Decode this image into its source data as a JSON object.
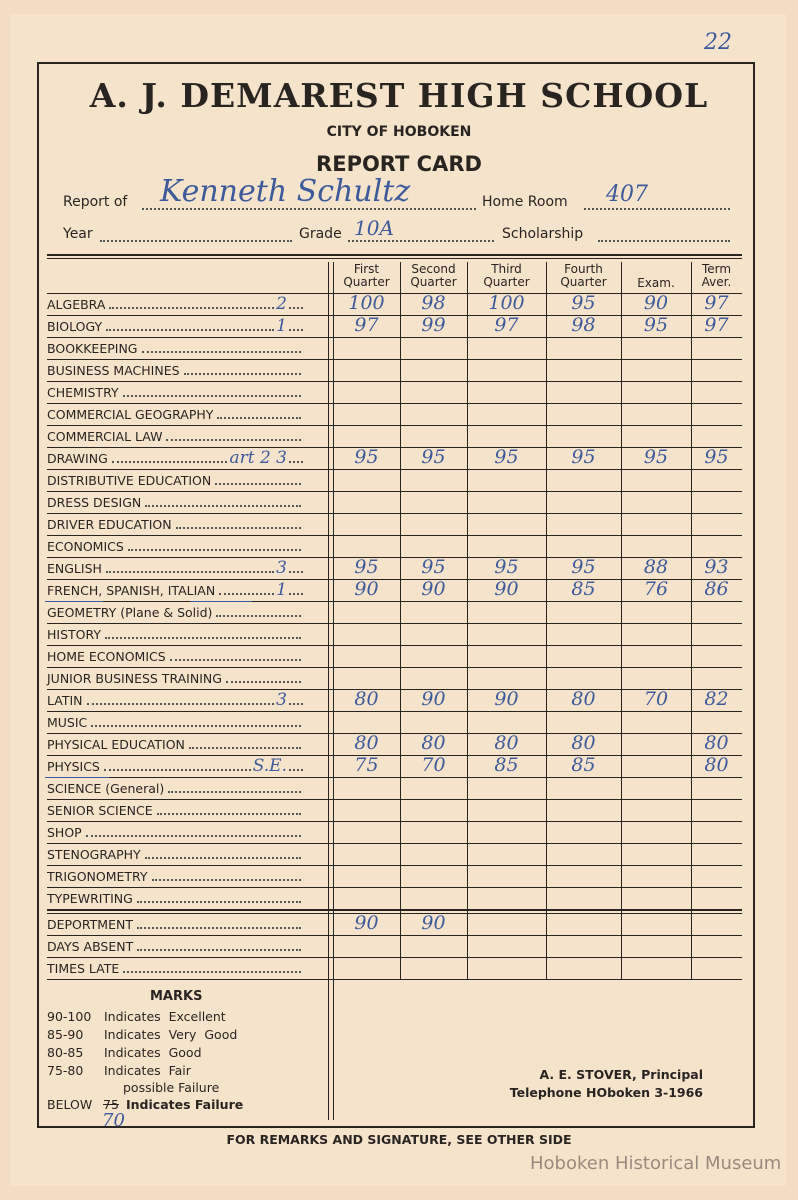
{
  "page_number": "22",
  "header": {
    "school": "A. J. DEMAREST HIGH SCHOOL",
    "city": "CITY OF HOBOKEN",
    "title": "REPORT CARD"
  },
  "fields": {
    "report_of_label": "Report of",
    "report_of_value": "Kenneth Schultz",
    "home_room_label": "Home Room",
    "home_room_value": "407",
    "year_label": "Year",
    "year_value": "",
    "grade_label": "Grade",
    "grade_value": "10A",
    "scholarship_label": "Scholarship",
    "scholarship_value": ""
  },
  "columns": [
    "First Quarter",
    "Second Quarter",
    "Third Quarter",
    "Fourth Quarter",
    "Exam.",
    "Term Aver."
  ],
  "subjects": [
    {
      "name": "ALGEBRA",
      "note": "2",
      "grades": [
        "100",
        "98",
        "100",
        "95",
        "90",
        "97"
      ]
    },
    {
      "name": "BIOLOGY",
      "note": "1",
      "grades": [
        "97",
        "99",
        "97",
        "98",
        "95",
        "97"
      ]
    },
    {
      "name": "BOOKKEEPING",
      "note": "",
      "grades": [
        "",
        "",
        "",
        "",
        "",
        ""
      ]
    },
    {
      "name": "BUSINESS MACHINES",
      "note": "",
      "grades": [
        "",
        "",
        "",
        "",
        "",
        ""
      ]
    },
    {
      "name": "CHEMISTRY",
      "note": "",
      "grades": [
        "",
        "",
        "",
        "",
        "",
        ""
      ]
    },
    {
      "name": "COMMERCIAL GEOGRAPHY",
      "note": "",
      "grades": [
        "",
        "",
        "",
        "",
        "",
        ""
      ]
    },
    {
      "name": "COMMERCIAL LAW",
      "note": "",
      "grades": [
        "",
        "",
        "",
        "",
        "",
        ""
      ]
    },
    {
      "name": "DRAWING",
      "note": "art 2 3",
      "grades": [
        "95",
        "95",
        "95",
        "95",
        "95",
        "95"
      ]
    },
    {
      "name": "DISTRIBUTIVE EDUCATION",
      "note": "",
      "grades": [
        "",
        "",
        "",
        "",
        "",
        ""
      ]
    },
    {
      "name": "DRESS DESIGN",
      "note": "",
      "grades": [
        "",
        "",
        "",
        "",
        "",
        ""
      ]
    },
    {
      "name": "DRIVER EDUCATION",
      "note": "",
      "grades": [
        "",
        "",
        "",
        "",
        "",
        ""
      ]
    },
    {
      "name": "ECONOMICS",
      "note": "",
      "grades": [
        "",
        "",
        "",
        "",
        "",
        ""
      ]
    },
    {
      "name": "ENGLISH",
      "note": "3",
      "grades": [
        "95",
        "95",
        "95",
        "95",
        "88",
        "93"
      ]
    },
    {
      "name": "FRENCH, SPANISH, ITALIAN",
      "note": "1",
      "grades": [
        "90",
        "90",
        "90",
        "85",
        "76",
        "86"
      ]
    },
    {
      "name": "GEOMETRY (Plane & Solid)",
      "note": "",
      "grades": [
        "",
        "",
        "",
        "",
        "",
        ""
      ]
    },
    {
      "name": "HISTORY",
      "note": "",
      "grades": [
        "",
        "",
        "",
        "",
        "",
        ""
      ]
    },
    {
      "name": "HOME ECONOMICS",
      "note": "",
      "grades": [
        "",
        "",
        "",
        "",
        "",
        ""
      ]
    },
    {
      "name": "JUNIOR BUSINESS TRAINING",
      "note": "",
      "grades": [
        "",
        "",
        "",
        "",
        "",
        ""
      ]
    },
    {
      "name": "LATIN",
      "note": "3",
      "grades": [
        "80",
        "90",
        "90",
        "80",
        "70",
        "82"
      ]
    },
    {
      "name": "MUSIC",
      "note": "",
      "grades": [
        "",
        "",
        "",
        "",
        "",
        ""
      ]
    },
    {
      "name": "PHYSICAL EDUCATION",
      "note": "",
      "grades": [
        "80",
        "80",
        "80",
        "80",
        "",
        "80"
      ]
    },
    {
      "name": "PHYSICS",
      "note": "S.E.",
      "grades": [
        "75",
        "70",
        "85",
        "85",
        "",
        "80"
      ]
    },
    {
      "name": "SCIENCE (General)",
      "note": "",
      "grades": [
        "",
        "",
        "",
        "",
        "",
        ""
      ]
    },
    {
      "name": "SENIOR SCIENCE",
      "note": "",
      "grades": [
        "",
        "",
        "",
        "",
        "",
        ""
      ]
    },
    {
      "name": "SHOP",
      "note": "",
      "grades": [
        "",
        "",
        "",
        "",
        "",
        ""
      ]
    },
    {
      "name": "STENOGRAPHY",
      "note": "",
      "grades": [
        "",
        "",
        "",
        "",
        "",
        ""
      ]
    },
    {
      "name": "TRIGONOMETRY",
      "note": "",
      "grades": [
        "",
        "",
        "",
        "",
        "",
        ""
      ]
    },
    {
      "name": "TYPEWRITING",
      "note": "",
      "grades": [
        "",
        "",
        "",
        "",
        "",
        ""
      ]
    }
  ],
  "conduct": [
    {
      "name": "DEPORTMENT",
      "grades": [
        "90",
        "90",
        "",
        "",
        "",
        ""
      ]
    },
    {
      "name": "DAYS ABSENT",
      "grades": [
        "",
        "",
        "",
        "",
        "",
        ""
      ]
    },
    {
      "name": "TIMES LATE",
      "grades": [
        "",
        "",
        "",
        "",
        "",
        ""
      ]
    }
  ],
  "marks": {
    "title": "MARKS",
    "items": [
      {
        "range": "90-100",
        "meaning": "Indicates  Excellent"
      },
      {
        "range": "85-90",
        "meaning": "Indicates  Very  Good"
      },
      {
        "range": "80-85",
        "meaning": "Indicates  Good"
      },
      {
        "range": "75-80",
        "meaning": "Indicates  Fair"
      }
    ],
    "possible_failure": "possible Failure",
    "below_label": "BELOW",
    "below_printed": "75",
    "below_handwritten": "70",
    "below_meaning": "Indicates Failure"
  },
  "principal": {
    "name": "A.  E.  STOVER,  Principal",
    "telephone": "Telephone  HOboken  3-1966"
  },
  "footer": "FOR REMARKS AND SIGNATURE, SEE OTHER SIDE",
  "watermark": "Hoboken Historical Museum"
}
